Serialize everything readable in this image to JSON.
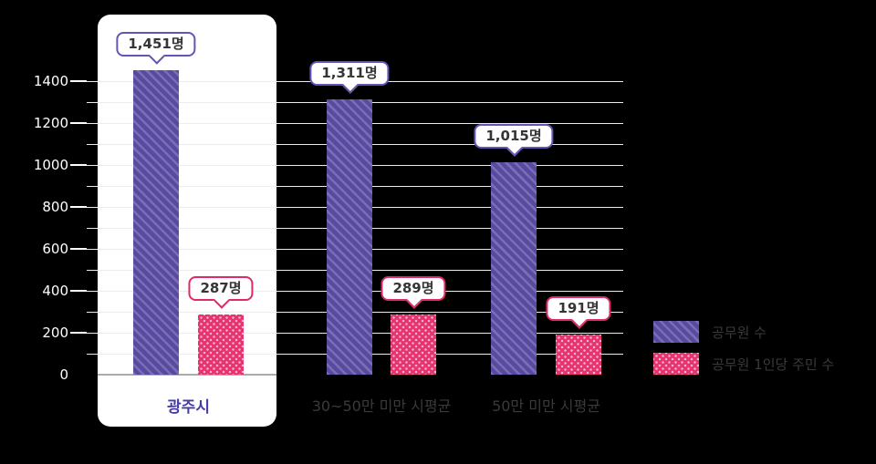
{
  "colors": {
    "background": "#000000",
    "card_bg": "#FFFFFF",
    "purple_bar": "#584AA0",
    "purple_border": "#6355B5",
    "pink_bar": "#E7336F",
    "pink_border": "#DD2B68",
    "bubble_text": "#353535",
    "axis_text": "#FFFFFF",
    "category_text": "#3A3A3A",
    "highlight_category_text": "#463CA8",
    "gridline": "#ECECEC",
    "baseline": "#ABABAB"
  },
  "chart_data": {
    "type": "bar",
    "categories": [
      "광주시",
      "30~50만 미만 시평균",
      "50만 미만 시평균"
    ],
    "series": [
      {
        "name": "공무원 수",
        "values": [
          1451,
          1311,
          1015
        ],
        "data_labels": [
          "1,451명",
          "1,311명",
          "1,015명"
        ],
        "pattern": "diagonal-stripes",
        "color": "#584AA0",
        "border_color": "#6355B5"
      },
      {
        "name": "공무원 1인당 주민 수",
        "values": [
          287,
          289,
          191
        ],
        "data_labels": [
          "287명",
          "289명",
          "191명"
        ],
        "pattern": "polka-dots",
        "color": "#E7336F",
        "border_color": "#DD2B68"
      }
    ],
    "unit_suffix": "명",
    "y_ticks": [
      0,
      200,
      400,
      600,
      800,
      1000,
      1200,
      1400
    ],
    "ylim": [
      0,
      1500
    ],
    "gridline_step": 100,
    "grid": true,
    "legend_position": "right",
    "highlight_category": "광주시",
    "highlight_style": "white-rounded-card"
  }
}
